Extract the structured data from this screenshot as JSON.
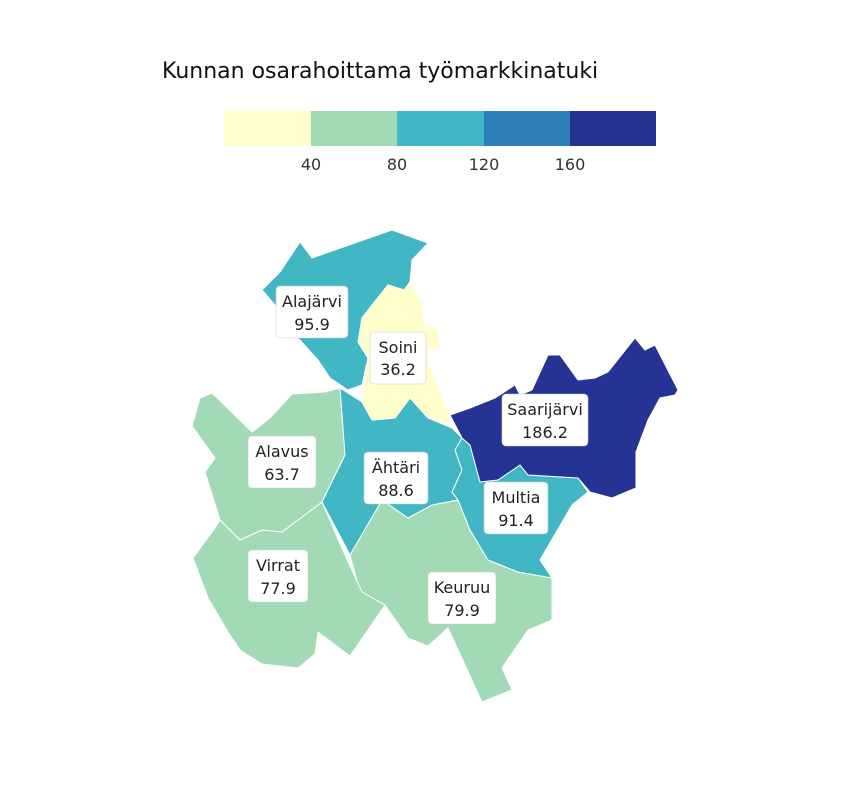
{
  "map": {
    "title": "Kunnan osarahoittama työmarkkinatuki",
    "legend": {
      "colors": [
        "#ffffcc",
        "#a1dab4",
        "#41b6c4",
        "#2c7fb8",
        "#253494"
      ],
      "breaks": [
        0,
        40,
        80,
        120,
        160,
        200
      ],
      "tick_labels": [
        "40",
        "80",
        "120",
        "160"
      ]
    },
    "regions": [
      {
        "name": "Alajärvi",
        "value": "95.9",
        "class": 2
      },
      {
        "name": "Soini",
        "value": "36.2",
        "class": 0
      },
      {
        "name": "Saarijärvi",
        "value": "186.2",
        "class": 4
      },
      {
        "name": "Alavus",
        "value": "63.7",
        "class": 1
      },
      {
        "name": "Ähtäri",
        "value": "88.6",
        "class": 2
      },
      {
        "name": "Multia",
        "value": "91.4",
        "class": 2
      },
      {
        "name": "Virrat",
        "value": "77.9",
        "class": 1
      },
      {
        "name": "Keuruu",
        "value": "79.9",
        "class": 1
      }
    ]
  }
}
